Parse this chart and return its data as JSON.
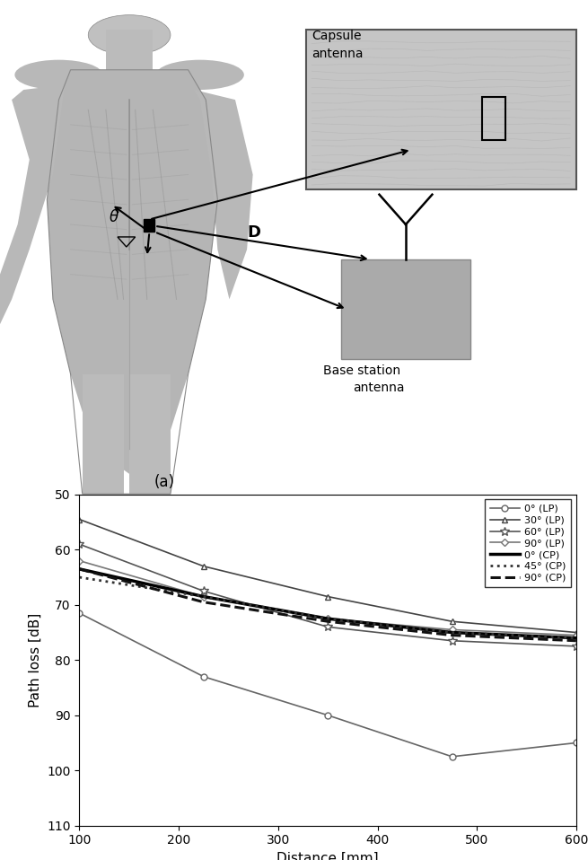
{
  "title_a": "(a)",
  "xlabel": "Distance [mm]",
  "ylabel": "Path loss [dB]",
  "xlim": [
    100,
    600
  ],
  "ylim": [
    110,
    50
  ],
  "xticks": [
    100,
    200,
    300,
    400,
    500,
    600
  ],
  "yticks": [
    50,
    60,
    70,
    80,
    90,
    100,
    110
  ],
  "series": [
    {
      "label": "0° (LP)",
      "marker": "o",
      "linestyle": "-",
      "color": "#666666",
      "linewidth": 1.2,
      "markersize": 5,
      "markerfacecolor": "white",
      "x": [
        100,
        225,
        350,
        475,
        600
      ],
      "y": [
        71.5,
        83.0,
        90.0,
        97.5,
        95.0
      ]
    },
    {
      "label": "30° (LP)",
      "marker": "^",
      "linestyle": "-",
      "color": "#444444",
      "linewidth": 1.2,
      "markersize": 5,
      "markerfacecolor": "white",
      "x": [
        100,
        225,
        350,
        475,
        600
      ],
      "y": [
        54.5,
        63.0,
        68.5,
        73.0,
        75.0
      ]
    },
    {
      "label": "60° (LP)",
      "marker": "*",
      "linestyle": "-",
      "color": "#555555",
      "linewidth": 1.2,
      "markersize": 7,
      "markerfacecolor": "white",
      "x": [
        100,
        225,
        350,
        475,
        600
      ],
      "y": [
        59.0,
        67.5,
        74.0,
        76.5,
        77.5
      ]
    },
    {
      "label": "90° (LP)",
      "marker": "D",
      "linestyle": "-",
      "color": "#777777",
      "linewidth": 1.2,
      "markersize": 4,
      "markerfacecolor": "white",
      "x": [
        100,
        225,
        350,
        475,
        600
      ],
      "y": [
        62.0,
        68.5,
        72.5,
        74.5,
        75.5
      ]
    },
    {
      "label": "0° (CP)",
      "marker": "",
      "linestyle": "-",
      "color": "#000000",
      "linewidth": 2.5,
      "markersize": 0,
      "markerfacecolor": "none",
      "x": [
        100,
        225,
        350,
        475,
        600
      ],
      "y": [
        63.5,
        68.5,
        72.5,
        75.0,
        76.0
      ]
    },
    {
      "label": "45° (CP)",
      "marker": "",
      "linestyle": ":",
      "color": "#333333",
      "linewidth": 2.0,
      "markersize": 0,
      "markerfacecolor": "none",
      "x": [
        100,
        225,
        350,
        475,
        600
      ],
      "y": [
        65.0,
        68.5,
        72.5,
        75.0,
        76.0
      ]
    },
    {
      "label": "90° (CP)",
      "marker": "",
      "linestyle": "--",
      "color": "#111111",
      "linewidth": 2.2,
      "markersize": 0,
      "markerfacecolor": "none",
      "x": [
        100,
        225,
        350,
        475,
        600
      ],
      "y": [
        63.5,
        69.5,
        73.0,
        75.5,
        76.5
      ]
    }
  ],
  "background_color": "#ffffff"
}
